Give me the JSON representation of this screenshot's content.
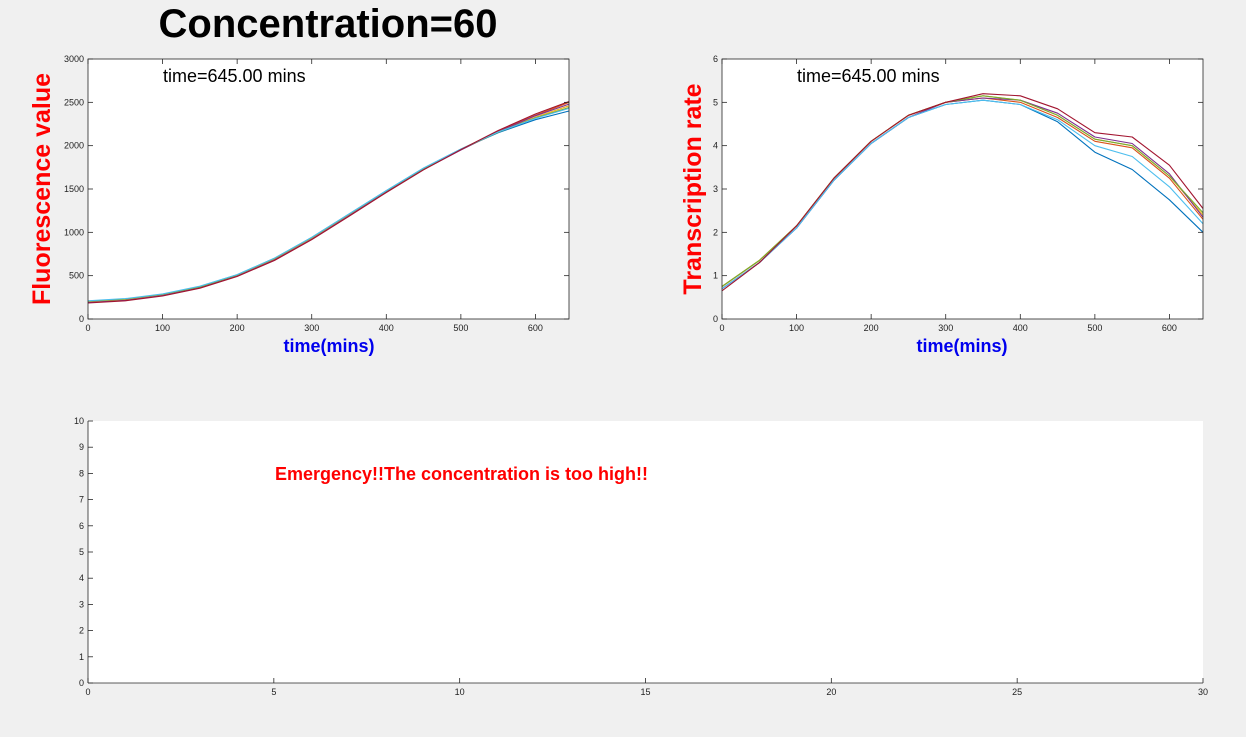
{
  "figure_title": "Concentration=60",
  "colors": {
    "axis_label_y": "#ff0000",
    "axis_label_x": "#0000ee",
    "warning": "#ff0000",
    "series": [
      "#0072bd",
      "#d95319",
      "#edb120",
      "#7e2f8e",
      "#77ac30",
      "#4dbeee",
      "#a2142f"
    ]
  },
  "chart_data": [
    {
      "type": "line",
      "ylabel": "Fluorescence value",
      "xlabel": "time(mins)",
      "annotation": "time=645.00 mins",
      "xlim": [
        0,
        645
      ],
      "ylim": [
        0,
        3000
      ],
      "xticks": [
        0,
        100,
        200,
        300,
        400,
        500,
        600
      ],
      "yticks": [
        0,
        500,
        1000,
        1500,
        2000,
        2500,
        3000
      ],
      "grid": false,
      "x": [
        0,
        50,
        100,
        150,
        200,
        250,
        300,
        350,
        400,
        450,
        500,
        550,
        600,
        645
      ],
      "series": [
        {
          "values": [
            205,
            230,
            285,
            375,
            510,
            700,
            940,
            1210,
            1480,
            1740,
            1960,
            2150,
            2300,
            2400
          ]
        },
        {
          "values": [
            195,
            220,
            275,
            365,
            500,
            685,
            925,
            1195,
            1470,
            1730,
            1955,
            2170,
            2350,
            2500
          ]
        },
        {
          "values": [
            200,
            225,
            280,
            370,
            505,
            695,
            935,
            1205,
            1475,
            1735,
            1960,
            2160,
            2330,
            2460
          ]
        },
        {
          "values": [
            190,
            215,
            270,
            360,
            495,
            680,
            920,
            1190,
            1465,
            1725,
            1950,
            2160,
            2345,
            2480
          ]
        },
        {
          "values": [
            205,
            230,
            285,
            372,
            508,
            698,
            938,
            1208,
            1478,
            1738,
            1958,
            2155,
            2320,
            2440
          ]
        },
        {
          "values": [
            210,
            235,
            290,
            378,
            512,
            702,
            942,
            1212,
            1482,
            1742,
            1962,
            2158,
            2315,
            2430
          ]
        },
        {
          "values": [
            185,
            210,
            265,
            355,
            490,
            675,
            915,
            1185,
            1460,
            1722,
            1955,
            2175,
            2365,
            2510
          ]
        }
      ]
    },
    {
      "type": "line",
      "ylabel": "Transcription rate",
      "xlabel": "time(mins)",
      "annotation": "time=645.00 mins",
      "xlim": [
        0,
        645
      ],
      "ylim": [
        0,
        6
      ],
      "xticks": [
        0,
        100,
        200,
        300,
        400,
        500,
        600
      ],
      "yticks": [
        0,
        1,
        2,
        3,
        4,
        5,
        6
      ],
      "grid": false,
      "x": [
        0,
        50,
        100,
        150,
        200,
        250,
        300,
        350,
        400,
        450,
        500,
        550,
        600,
        645
      ],
      "series": [
        {
          "values": [
            0.7,
            1.3,
            2.1,
            3.2,
            4.05,
            4.65,
            4.95,
            5.05,
            4.95,
            4.55,
            3.85,
            3.45,
            2.75,
            2.0
          ]
        },
        {
          "values": [
            0.75,
            1.35,
            2.15,
            3.25,
            4.1,
            4.7,
            5.0,
            5.1,
            5.0,
            4.65,
            4.1,
            3.95,
            3.25,
            2.3
          ]
        },
        {
          "values": [
            0.75,
            1.35,
            2.15,
            3.25,
            4.1,
            4.7,
            5.0,
            5.15,
            5.05,
            4.7,
            4.15,
            4.0,
            3.3,
            2.4
          ]
        },
        {
          "values": [
            0.7,
            1.3,
            2.1,
            3.2,
            4.05,
            4.65,
            5.0,
            5.1,
            5.05,
            4.75,
            4.2,
            4.05,
            3.35,
            2.35
          ]
        },
        {
          "values": [
            0.75,
            1.35,
            2.15,
            3.25,
            4.1,
            4.7,
            5.0,
            5.15,
            5.05,
            4.7,
            4.15,
            4.0,
            3.3,
            2.45
          ]
        },
        {
          "values": [
            0.7,
            1.3,
            2.1,
            3.2,
            4.05,
            4.65,
            4.95,
            5.05,
            4.95,
            4.6,
            4.0,
            3.75,
            3.05,
            2.2
          ]
        },
        {
          "values": [
            0.65,
            1.3,
            2.15,
            3.25,
            4.1,
            4.7,
            5.0,
            5.2,
            5.15,
            4.85,
            4.3,
            4.2,
            3.55,
            2.55
          ]
        }
      ]
    },
    {
      "type": "line",
      "ylabel": "",
      "xlabel": "",
      "annotation": "Emergency!!The concentration is too high!!",
      "xlim": [
        0,
        30
      ],
      "ylim": [
        0,
        10
      ],
      "xticks": [
        0,
        5,
        10,
        15,
        20,
        25,
        30
      ],
      "yticks": [
        0,
        1,
        2,
        3,
        4,
        5,
        6,
        7,
        8,
        9,
        10
      ],
      "grid": false,
      "series": []
    }
  ]
}
